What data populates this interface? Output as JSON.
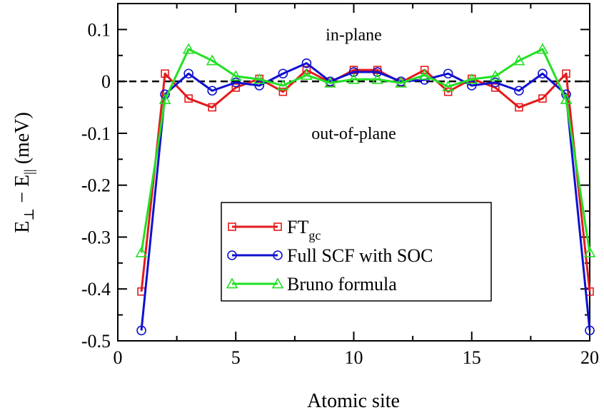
{
  "chart_data": {
    "type": "line",
    "xlabel": "Atomic site",
    "ylabel": "E⊥ − E‖  (meV)",
    "ylabel_parts": {
      "e1": "E",
      "sub1": "⊥",
      "minus": "−",
      "e2": "E",
      "sub2": "||",
      "unit": "(meV)"
    },
    "xlim": [
      0,
      20
    ],
    "ylim": [
      -0.5,
      0.15
    ],
    "xticks": [
      0,
      5,
      10,
      15,
      20
    ],
    "xtick_labels": [
      "0",
      "5",
      "10",
      "15",
      "20"
    ],
    "yticks": [
      0.1,
      0,
      -0.1,
      -0.2,
      -0.3,
      -0.4,
      -0.5
    ],
    "ytick_labels": [
      "0.1",
      "0",
      "-0.1",
      "-0.2",
      "-0.3",
      "-0.4",
      "-0.5"
    ],
    "annotations": [
      {
        "text": "in-plane",
        "x": 10,
        "y": 0.09
      },
      {
        "text": "out-of-plane",
        "x": 10,
        "y": -0.1
      }
    ],
    "reference_line": {
      "y": 0,
      "style": "dashed"
    },
    "legend_position": "bottom-center",
    "x": [
      1,
      2,
      3,
      4,
      5,
      6,
      7,
      8,
      9,
      10,
      11,
      12,
      13,
      14,
      15,
      16,
      17,
      18,
      19,
      20
    ],
    "series": [
      {
        "name": "FT",
        "name_sub": "gc",
        "color": "#e41a1c",
        "marker": "square",
        "values": [
          -0.405,
          0.015,
          -0.033,
          -0.05,
          -0.012,
          0.005,
          -0.02,
          0.022,
          -0.002,
          0.022,
          0.022,
          -0.002,
          0.022,
          -0.02,
          0.005,
          -0.012,
          -0.05,
          -0.033,
          0.015,
          -0.405
        ]
      },
      {
        "name": "Full SCF with SOC",
        "color": "#1010d0",
        "marker": "circle",
        "values": [
          -0.48,
          -0.025,
          0.015,
          -0.018,
          -0.002,
          -0.008,
          0.015,
          0.035,
          0.0,
          0.018,
          0.018,
          0.0,
          0.003,
          0.015,
          -0.008,
          -0.002,
          -0.018,
          0.015,
          -0.025,
          -0.48
        ]
      },
      {
        "name": "Bruno formula",
        "color": "#22e022",
        "marker": "triangle",
        "values": [
          -0.33,
          -0.035,
          0.062,
          0.04,
          0.01,
          0.004,
          -0.008,
          0.012,
          -0.003,
          0.004,
          0.004,
          -0.003,
          0.012,
          -0.01,
          0.004,
          0.01,
          0.04,
          0.062,
          -0.035,
          -0.33
        ]
      }
    ]
  }
}
